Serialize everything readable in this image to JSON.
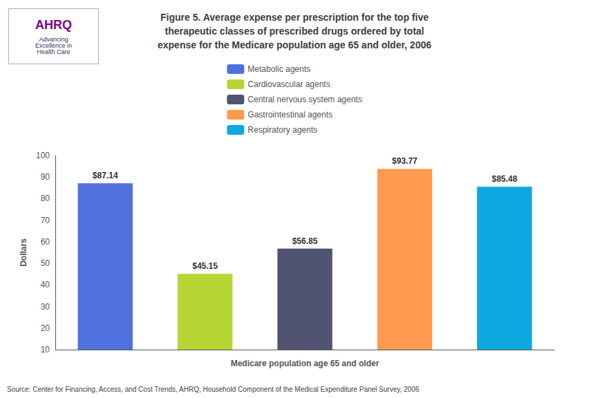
{
  "chart_data": {
    "type": "bar",
    "title": "Figure 5. Average expense per prescription for the top five\ntherapeutic classes of prescribed drugs ordered by total\nexpense for the Medicare population age 65 and older, 2006",
    "xlabel": "Medicare population age 65 and older",
    "ylabel": "Dollars",
    "categories": [
      "Metabolic agents",
      "Cardiovascular agents",
      "Central nervous system agents",
      "Gastrointestinal agents",
      "Respiratory agents"
    ],
    "values": [
      87.14,
      45.15,
      56.85,
      93.77,
      85.48
    ],
    "value_labels": [
      "$87.14",
      "$45.15",
      "$56.85",
      "$93.77",
      "$85.48"
    ],
    "data_labels": true,
    "ylim": [
      10,
      100
    ],
    "yticks": [
      10,
      20,
      30,
      40,
      50,
      60,
      70,
      80,
      90,
      100
    ],
    "grid": false,
    "legend": "top",
    "tick_labels": "y",
    "annotations": [
      "AHRQ",
      "Advancing\nExcellence in\nHealth Care",
      "Source: Center for Financing, Access, and Cost Trends, AHRQ, Household Component of the Medical Expenditure Panel Survey, 2006"
    ]
  }
}
